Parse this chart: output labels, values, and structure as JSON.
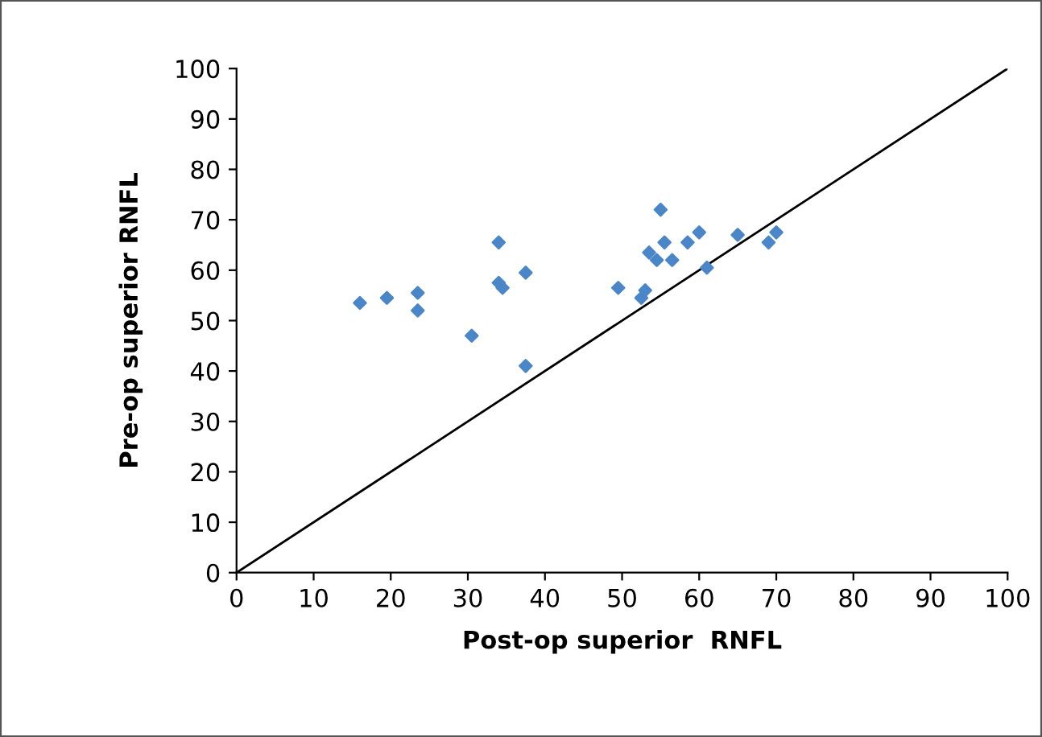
{
  "chart_data": {
    "type": "scatter",
    "xlabel": "Post-op superior  RNFL",
    "ylabel": "Pre-op superior RNFL",
    "xlim": [
      0,
      100
    ],
    "ylim": [
      0,
      100
    ],
    "xticks": [
      0,
      10,
      20,
      30,
      40,
      50,
      60,
      70,
      80,
      90,
      100
    ],
    "yticks": [
      0,
      10,
      20,
      30,
      40,
      50,
      60,
      70,
      80,
      90,
      100
    ],
    "grid": false,
    "legend": false,
    "marker": "diamond",
    "series": [
      {
        "color": "#4a86c8",
        "x": [
          16,
          19.5,
          23.5,
          23.5,
          30.5,
          34,
          34,
          34.5,
          37.5,
          37.5,
          49.5,
          52.5,
          53,
          53.5,
          54.5,
          55,
          55.5,
          56.5,
          58.5,
          60,
          61,
          65,
          69,
          70
        ],
        "values": [
          53.5,
          54.5,
          55.5,
          52,
          47,
          65.5,
          57.5,
          56.5,
          59.5,
          41,
          56.5,
          54.5,
          56,
          63.5,
          62,
          72,
          65.5,
          62,
          65.5,
          67.5,
          60.5,
          67,
          65.5,
          67.5
        ]
      },
      {
        "type": "line",
        "color": "#000000",
        "marker": "none",
        "line_style": "solid",
        "x": [
          0,
          100
        ],
        "values": [
          0,
          100
        ]
      }
    ]
  }
}
